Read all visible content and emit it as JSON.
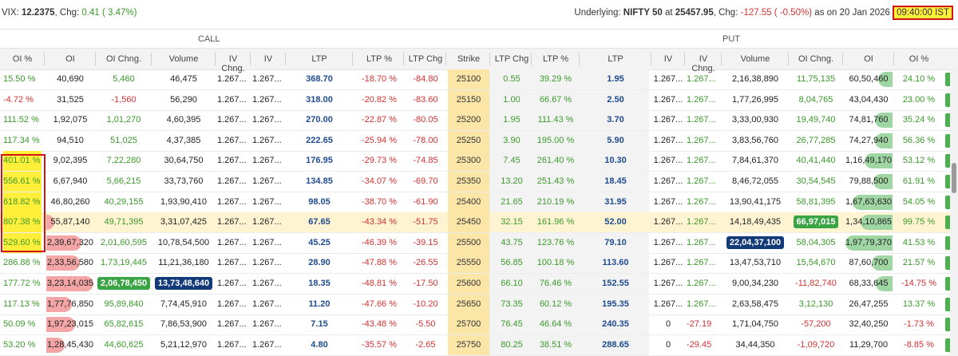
{
  "topbar": {
    "vix_label": "VIX: ",
    "vix_value": "12.2375",
    "chg_label": ", Chg: ",
    "chg_value": "0.41 ( 3.47%)",
    "underlying_label": "Underlying: ",
    "underlying_name": "NIFTY 50",
    "at_label": " at ",
    "underlying_price": "25457.95",
    "uchg_label": ", Chg: ",
    "uchg_value": "-127.55 ( -0.50%)",
    "asof_label": " as on 20 Jan 2026 ",
    "time_value": "09:40:00 IST"
  },
  "groups": {
    "call": "CALL",
    "put": "PUT"
  },
  "columns": [
    "OI %",
    "OI",
    "OI Chng.",
    "Volume",
    "IV Chng.",
    "IV",
    "LTP",
    "LTP %",
    "LTP Chg",
    "Strike",
    "LTP Chg",
    "LTP %",
    "LTP",
    "IV",
    "IV Chng.",
    "Volume",
    "OI Chng.",
    "OI",
    "OI %"
  ],
  "rows": [
    {
      "c_oip": "15.50 %",
      "c_oi": "40,690",
      "c_oic": "5,460",
      "c_vol": "46,475",
      "c_ivc": "1.267...",
      "c_iv": "1.267...",
      "c_ltp": "368.70",
      "c_ltpp": "-18.70 %",
      "c_ltpc": "-84.80",
      "strike": "25100",
      "p_ltpc": "0.55",
      "p_ltpp": "39.29 %",
      "p_ltp": "1.95",
      "p_iv": "1.267...",
      "p_ivc": "1.267...",
      "p_vol": "2,16,38,890",
      "p_oic": "11,75,135",
      "p_oi": "60,50,460",
      "p_oip": "24.10 %"
    },
    {
      "c_oip": "-4.72 %",
      "c_oi": "31,525",
      "c_oic": "-1,560",
      "c_vol": "56,290",
      "c_ivc": "1.267...",
      "c_iv": "1.267...",
      "c_ltp": "318.00",
      "c_ltpp": "-20.82 %",
      "c_ltpc": "-83.60",
      "strike": "25150",
      "p_ltpc": "1.00",
      "p_ltpp": "66.67 %",
      "p_ltp": "2.50",
      "p_iv": "1.267...",
      "p_ivc": "1.267...",
      "p_vol": "1,77,26,995",
      "p_oic": "8,04,765",
      "p_oi": "43,04,430",
      "p_oip": "23.00 %"
    },
    {
      "c_oip": "111.52 %",
      "c_oi": "1,92,075",
      "c_oic": "1,01,270",
      "c_vol": "4,60,395",
      "c_ivc": "1.267...",
      "c_iv": "1.267...",
      "c_ltp": "270.00",
      "c_ltpp": "-22.87 %",
      "c_ltpc": "-80.05",
      "strike": "25200",
      "p_ltpc": "1.95",
      "p_ltpp": "111.43 %",
      "p_ltp": "3.70",
      "p_iv": "1.267...",
      "p_ivc": "1.267...",
      "p_vol": "3,33,00,930",
      "p_oic": "19,49,740",
      "p_oi": "74,81,760",
      "p_oip": "35.24 %"
    },
    {
      "c_oip": "117.34 %",
      "c_oi": "94,510",
      "c_oic": "51,025",
      "c_vol": "4,37,385",
      "c_ivc": "1.267...",
      "c_iv": "1.267...",
      "c_ltp": "222.65",
      "c_ltpp": "-25.94 %",
      "c_ltpc": "-78.00",
      "strike": "25250",
      "p_ltpc": "3.90",
      "p_ltpp": "195.00 %",
      "p_ltp": "5.90",
      "p_iv": "1.267...",
      "p_ivc": "1.267...",
      "p_vol": "3,83,56,760",
      "p_oic": "26,77,285",
      "p_oi": "74,27,940",
      "p_oip": "56.36 %"
    },
    {
      "c_oip": "401.01 %",
      "c_oi": "9,02,395",
      "c_oic": "7,22,280",
      "c_vol": "30,64,750",
      "c_ivc": "1.267...",
      "c_iv": "1.267...",
      "c_ltp": "176.95",
      "c_ltpp": "-29.73 %",
      "c_ltpc": "-74.85",
      "strike": "25300",
      "p_ltpc": "7.45",
      "p_ltpp": "261.40 %",
      "p_ltp": "10.30",
      "p_iv": "1.267...",
      "p_ivc": "1.267...",
      "p_vol": "7,84,61,370",
      "p_oic": "40,41,440",
      "p_oi": "1,16,49,170",
      "p_oip": "53.12 %"
    },
    {
      "c_oip": "556.61 %",
      "c_oi": "6,67,940",
      "c_oic": "5,66,215",
      "c_vol": "33,73,760",
      "c_ivc": "1.267...",
      "c_iv": "1.267...",
      "c_ltp": "134.85",
      "c_ltpp": "-34.07 %",
      "c_ltpc": "-69.70",
      "strike": "25350",
      "p_ltpc": "13.20",
      "p_ltpp": "251.43 %",
      "p_ltp": "18.45",
      "p_iv": "1.267...",
      "p_ivc": "1.267...",
      "p_vol": "8,46,72,055",
      "p_oic": "30,54,545",
      "p_oi": "79,88,500",
      "p_oip": "61.91 %"
    },
    {
      "c_oip": "618.82 %",
      "c_oi": "46,80,260",
      "c_oic": "40,29,155",
      "c_vol": "1,93,90,410",
      "c_ivc": "1.267...",
      "c_iv": "1.267...",
      "c_ltp": "98.05",
      "c_ltpp": "-38.70 %",
      "c_ltpc": "-61.90",
      "strike": "25400",
      "p_ltpc": "21.65",
      "p_ltpp": "210.19 %",
      "p_ltp": "31.95",
      "p_iv": "1.267...",
      "p_ivc": "1.267...",
      "p_vol": "13,90,41,175",
      "p_oic": "58,81,395",
      "p_oi": "1,67,63,630",
      "p_oip": "54.05 %"
    },
    {
      "c_oip": "807.38 %",
      "c_oi": "55,87,140",
      "c_oic": "49,71,395",
      "c_vol": "3,31,07,425",
      "c_ivc": "1.267...",
      "c_iv": "1.267...",
      "c_ltp": "67.65",
      "c_ltpp": "-43.34 %",
      "c_ltpc": "-51.75",
      "strike": "25450",
      "p_ltpc": "32.15",
      "p_ltpp": "161.96 %",
      "p_ltp": "52.00",
      "p_iv": "1.267...",
      "p_ivc": "1.267...",
      "p_vol": "14,18,49,435",
      "p_oic": "66,97,015",
      "p_oi": "1,34,10,865",
      "p_oip": "99.75 %"
    },
    {
      "c_oip": "529.60 %",
      "c_oi": "2,39,67,320",
      "c_oic": "2,01,60,595",
      "c_vol": "10,78,54,500",
      "c_ivc": "1.267...",
      "c_iv": "1.267...",
      "c_ltp": "45.25",
      "c_ltpp": "-46.39 %",
      "c_ltpc": "-39.15",
      "strike": "25500",
      "p_ltpc": "43.75",
      "p_ltpp": "123.76 %",
      "p_ltp": "79.10",
      "p_iv": "1.267...",
      "p_ivc": "1.267...",
      "p_vol": "22,04,37,100",
      "p_oic": "58,04,305",
      "p_oi": "1,97,79,370",
      "p_oip": "41.53 %"
    },
    {
      "c_oip": "286.88 %",
      "c_oi": "2,33,56,580",
      "c_oic": "1,73,19,445",
      "c_vol": "11,21,36,180",
      "c_ivc": "1.267...",
      "c_iv": "1.267...",
      "c_ltp": "28.90",
      "c_ltpp": "-47.88 %",
      "c_ltpc": "-26.55",
      "strike": "25550",
      "p_ltpc": "56.85",
      "p_ltpp": "100.18 %",
      "p_ltp": "113.60",
      "p_iv": "1.267...",
      "p_ivc": "1.267...",
      "p_vol": "13,47,53,710",
      "p_oic": "15,54,670",
      "p_oi": "87,60,700",
      "p_oip": "21.57 %"
    },
    {
      "c_oip": "177.72 %",
      "c_oi": "3,23,14,035",
      "c_oic": "2,06,78,450",
      "c_vol": "13,73,48,640",
      "c_ivc": "1.267...",
      "c_iv": "1.267...",
      "c_ltp": "18.35",
      "c_ltpp": "-48.81 %",
      "c_ltpc": "-17.50",
      "strike": "25600",
      "p_ltpc": "66.10",
      "p_ltpp": "76.46 %",
      "p_ltp": "152.55",
      "p_iv": "1.267...",
      "p_ivc": "1.267...",
      "p_vol": "9,00,34,230",
      "p_oic": "-11,82,740",
      "p_oi": "68,33,645",
      "p_oip": "-14.75 %"
    },
    {
      "c_oip": "117.13 %",
      "c_oi": "1,77,76,850",
      "c_oic": "95,89,840",
      "c_vol": "7,74,45,910",
      "c_ivc": "1.267...",
      "c_iv": "1.267...",
      "c_ltp": "11.20",
      "c_ltpp": "-47.66 %",
      "c_ltpc": "-10.20",
      "strike": "25650",
      "p_ltpc": "73.35",
      "p_ltpp": "60.12 %",
      "p_ltp": "195.35",
      "p_iv": "1.267...",
      "p_ivc": "1.267...",
      "p_vol": "2,63,58,475",
      "p_oic": "3,12,130",
      "p_oi": "26,47,255",
      "p_oip": "13.37 %"
    },
    {
      "c_oip": "50.09 %",
      "c_oi": "1,97,23,015",
      "c_oic": "65,82,615",
      "c_vol": "7,86,53,900",
      "c_ivc": "1.267...",
      "c_iv": "1.267...",
      "c_ltp": "7.15",
      "c_ltpp": "-43.48 %",
      "c_ltpc": "-5.50",
      "strike": "25700",
      "p_ltpc": "76.45",
      "p_ltpp": "46.64 %",
      "p_ltp": "240.35",
      "p_iv": "0",
      "p_ivc": "-27.19",
      "p_vol": "1,71,04,750",
      "p_oic": "-57,200",
      "p_oi": "32,40,250",
      "p_oip": "-1.73 %"
    },
    {
      "c_oip": "53.20 %",
      "c_oi": "1,28,45,430",
      "c_oic": "44,60,625",
      "c_vol": "5,21,12,970",
      "c_ivc": "1.267...",
      "c_iv": "1.267...",
      "c_ltp": "4.80",
      "c_ltpp": "-35.57 %",
      "c_ltpc": "-2.65",
      "strike": "25750",
      "p_ltpc": "80.25",
      "p_ltpp": "38.51 %",
      "p_ltp": "288.65",
      "p_iv": "0",
      "p_ivc": "-29.45",
      "p_vol": "34,44,350",
      "p_oic": "-1,09,720",
      "p_oi": "11,29,700",
      "p_oip": "-8.85 %"
    }
  ],
  "colors": {
    "green": "#3a9a2a",
    "red": "#d23232",
    "ltp_blue": "#1f4b8f",
    "strike_bg": "#fbe6a8",
    "atm_bg": "#fff4d1",
    "highlight_yellow": "#ffef3a",
    "box_red": "#d21414"
  }
}
